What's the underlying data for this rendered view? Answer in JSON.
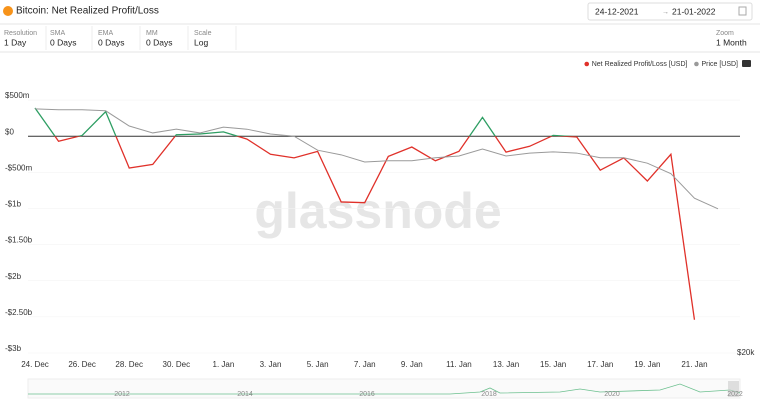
{
  "header": {
    "title": "Bitcoin: Net Realized Profit/Loss",
    "date_from": "24-12-2021",
    "date_to": "21-01-2022"
  },
  "controls": [
    {
      "label": "Resolution",
      "value": "1 Day"
    },
    {
      "label": "SMA",
      "value": "0 Days"
    },
    {
      "label": "EMA",
      "value": "0 Days"
    },
    {
      "label": "MM",
      "value": "0 Days"
    },
    {
      "label": "Scale",
      "value": "Log"
    },
    {
      "label": "Zoom",
      "value": "1 Month"
    }
  ],
  "watermark": "glassnode",
  "navigator": {
    "labels": [
      "2012",
      "2014",
      "2016",
      "2018",
      "2020",
      "2022"
    ]
  },
  "chart_data": {
    "type": "line",
    "categories": [
      "24. Dec",
      null,
      "26. Dec",
      null,
      "28. Dec",
      null,
      "30. Dec",
      null,
      "1. Jan",
      null,
      "3. Jan",
      null,
      "5. Jan",
      null,
      "7. Jan",
      null,
      "9. Jan",
      null,
      "11. Jan",
      null,
      "13. Jan",
      null,
      "15. Jan",
      null,
      "17. Jan",
      null,
      "19. Jan",
      null,
      "21. Jan",
      null
    ],
    "series": [
      {
        "name": "Net Realized Profit/Loss [USD]",
        "color": "#e0312a",
        "positive_color": "#2e9e63",
        "values": [
          390000000,
          -70000000,
          10000000,
          340000000,
          -440000000,
          -390000000,
          20000000,
          30000000,
          60000000,
          -40000000,
          -250000000,
          -300000000,
          -210000000,
          -910000000,
          -920000000,
          -280000000,
          -150000000,
          -340000000,
          -210000000,
          260000000,
          -220000000,
          -140000000,
          10000000,
          -10000000,
          -470000000,
          -300000000,
          -620000000,
          -250000000,
          -2540000000,
          null
        ]
      },
      {
        "name": "Price [USD]",
        "color": "#9a9a9a",
        "axis": "y2",
        "values": [
          52100,
          51900,
          51900,
          51700,
          48700,
          47400,
          48100,
          47400,
          48500,
          48100,
          47200,
          46800,
          44300,
          43500,
          42300,
          42500,
          42500,
          43000,
          43300,
          44500,
          43300,
          43800,
          44000,
          43800,
          43000,
          43000,
          42100,
          40400,
          36700,
          35200
        ]
      }
    ],
    "ylim": [
      -3000000000,
      570000000
    ],
    "yticks": [
      {
        "value": 500000000,
        "label": "$500m"
      },
      {
        "value": 0,
        "label": "$0"
      },
      {
        "value": -500000000,
        "label": "-$500m"
      },
      {
        "value": -1000000000,
        "label": "-$1b"
      },
      {
        "value": -1500000000,
        "label": "-$1.50b"
      },
      {
        "value": -2000000000,
        "label": "-$2b"
      },
      {
        "value": -2500000000,
        "label": "-$2.50b"
      },
      {
        "value": -3000000000,
        "label": "-$3b"
      }
    ],
    "y2lim": [
      20000,
      55000
    ],
    "y2ticks": [
      {
        "value": 20000,
        "label": "$20k"
      }
    ],
    "y2_log": true,
    "legend": "top-right"
  }
}
